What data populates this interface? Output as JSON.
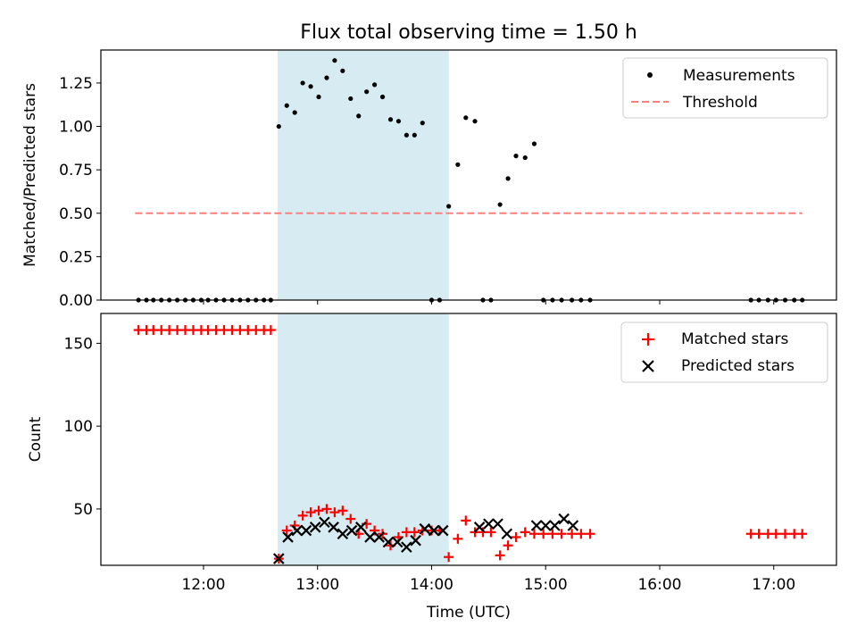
{
  "chart_data": {
    "title": "Flux total observing time = 1.50 h",
    "xlabel": "Time (UTC)",
    "x_ticks": [
      12,
      13,
      14,
      15,
      16,
      17
    ],
    "x_tick_labels": [
      "12:00",
      "13:00",
      "14:00",
      "15:00",
      "16:00",
      "17:00"
    ],
    "xlim": [
      11.1,
      17.55
    ],
    "highlight_span": [
      12.65,
      14.15
    ],
    "highlight_color": "#add8e6",
    "top": {
      "type": "scatter",
      "ylabel": "Matched/Predicted stars",
      "ylim": [
        0,
        1.44
      ],
      "y_ticks": [
        0,
        0.25,
        0.5,
        0.75,
        1.0,
        1.25
      ],
      "y_tick_labels": [
        "0.00",
        "0.25",
        "0.50",
        "0.75",
        "1.00",
        "1.25"
      ],
      "threshold": {
        "y": 0.5,
        "x_range": [
          11.4,
          17.25
        ],
        "color": "#ff7f7f"
      },
      "legend": [
        "Measurements",
        "Threshold"
      ],
      "legend_loc": "upper right",
      "measurements": {
        "x": [
          11.43,
          11.5,
          11.56,
          11.63,
          11.7,
          11.77,
          11.84,
          11.91,
          11.98,
          12.04,
          12.11,
          12.18,
          12.25,
          12.32,
          12.39,
          12.46,
          12.53,
          12.59,
          12.66,
          12.73,
          12.8,
          12.87,
          12.94,
          13.01,
          13.08,
          13.15,
          13.22,
          13.29,
          13.36,
          13.43,
          13.5,
          13.57,
          13.64,
          13.71,
          13.78,
          13.85,
          13.92,
          14.0,
          14.07,
          14.15,
          14.23,
          14.3,
          14.38,
          14.45,
          14.52,
          14.6,
          14.67,
          14.74,
          14.82,
          14.9,
          14.98,
          15.06,
          15.14,
          15.23,
          15.31,
          15.39,
          16.8,
          16.87,
          16.95,
          17.02,
          17.1,
          17.18,
          17.25
        ],
        "y": [
          0,
          0,
          0,
          0,
          0,
          0,
          0,
          0,
          0,
          0,
          0,
          0,
          0,
          0,
          0,
          0,
          0,
          0,
          1.0,
          1.12,
          1.08,
          1.25,
          1.23,
          1.17,
          1.28,
          1.38,
          1.32,
          1.16,
          1.06,
          1.2,
          1.24,
          1.17,
          1.04,
          1.03,
          0.95,
          0.95,
          1.02,
          0,
          0,
          0.54,
          0.78,
          1.05,
          1.03,
          0,
          0,
          0.55,
          0.7,
          0.83,
          0.82,
          0.9,
          0,
          0,
          0,
          0,
          0,
          0,
          0,
          0,
          0,
          0,
          0,
          0,
          0
        ]
      }
    },
    "bottom": {
      "type": "scatter",
      "ylabel": "Count",
      "ylim": [
        16,
        168
      ],
      "y_ticks": [
        50,
        100,
        150
      ],
      "y_tick_labels": [
        "50",
        "100",
        "150"
      ],
      "legend": [
        "Matched stars",
        "Predicted stars"
      ],
      "legend_loc": "upper right",
      "matched": {
        "x": [
          11.43,
          11.5,
          11.56,
          11.63,
          11.7,
          11.77,
          11.84,
          11.91,
          11.98,
          12.04,
          12.11,
          12.18,
          12.25,
          12.32,
          12.39,
          12.46,
          12.53,
          12.59,
          12.66,
          12.73,
          12.8,
          12.87,
          12.94,
          13.01,
          13.08,
          13.15,
          13.22,
          13.29,
          13.36,
          13.43,
          13.5,
          13.57,
          13.64,
          13.71,
          13.78,
          13.85,
          13.92,
          14.0,
          14.07,
          14.15,
          14.23,
          14.3,
          14.38,
          14.45,
          14.52,
          14.6,
          14.67,
          14.74,
          14.82,
          14.9,
          14.98,
          15.06,
          15.14,
          15.23,
          15.31,
          15.39,
          16.8,
          16.87,
          16.95,
          17.02,
          17.1,
          17.18,
          17.25
        ],
        "y": [
          158,
          158,
          158,
          158,
          158,
          158,
          158,
          158,
          158,
          158,
          158,
          158,
          158,
          158,
          158,
          158,
          158,
          158,
          20,
          37,
          40,
          46,
          48,
          49,
          50,
          48,
          49,
          44,
          35,
          41,
          37,
          35,
          28,
          33,
          36,
          36,
          37,
          37,
          37,
          21,
          32,
          43,
          36,
          36,
          36,
          22,
          28,
          33,
          36,
          35,
          35,
          35,
          35,
          35,
          35,
          35,
          35,
          35,
          35,
          35,
          35,
          35,
          35
        ]
      },
      "predicted": {
        "x": [
          12.66,
          12.74,
          12.82,
          12.9,
          12.98,
          13.06,
          13.14,
          13.22,
          13.3,
          13.38,
          13.46,
          13.54,
          13.62,
          13.7,
          13.78,
          13.86,
          13.94,
          14.02,
          14.1,
          14.42,
          14.5,
          14.58,
          14.66,
          14.92,
          15.0,
          15.08,
          15.16,
          15.24
        ],
        "y": [
          20,
          33,
          37,
          37,
          39,
          42,
          39,
          35,
          37,
          39,
          33,
          33,
          30,
          30,
          27,
          31,
          38,
          37,
          37,
          39,
          41,
          41,
          35,
          40,
          40,
          40,
          44,
          40
        ]
      }
    }
  }
}
